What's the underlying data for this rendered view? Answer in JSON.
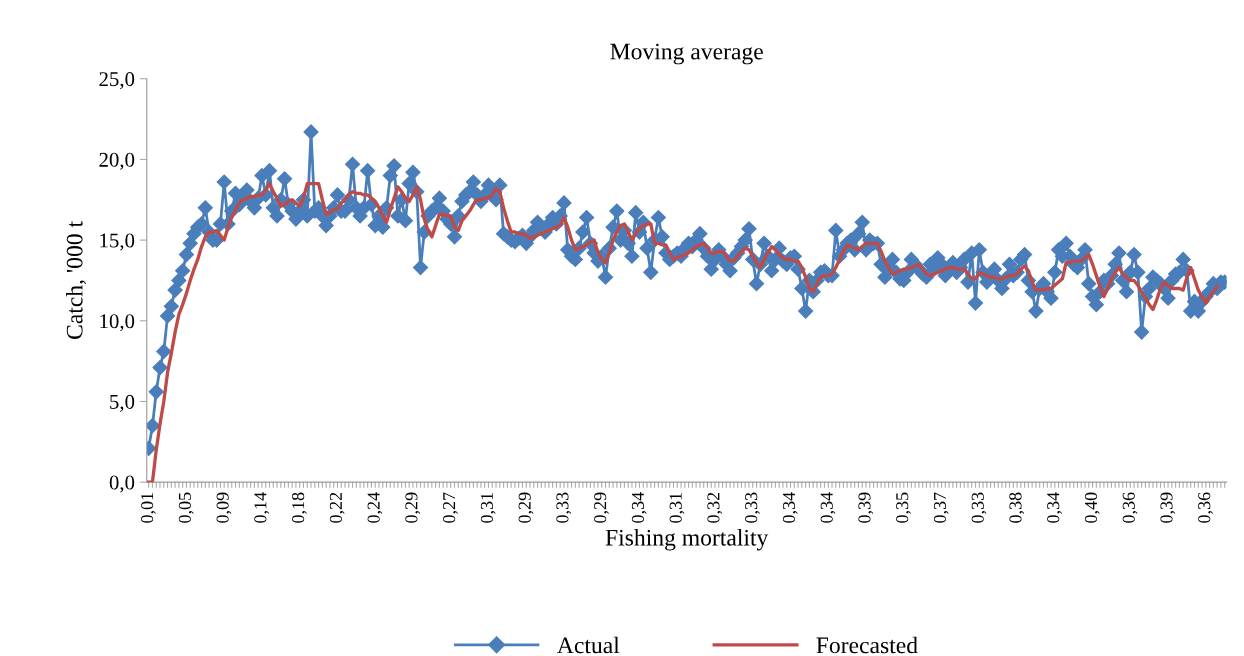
{
  "chart_data": {
    "type": "line",
    "title": "Moving average",
    "xlabel": "Fishing mortality",
    "ylabel": "Catch, '000 t",
    "categories": [
      "0,01",
      null,
      null,
      null,
      null,
      null,
      null,
      null,
      null,
      null,
      "0,05",
      null,
      null,
      null,
      null,
      null,
      null,
      null,
      null,
      null,
      "0,09",
      null,
      null,
      null,
      null,
      null,
      null,
      null,
      null,
      null,
      "0,14",
      null,
      null,
      null,
      null,
      null,
      null,
      null,
      null,
      null,
      "0,18",
      null,
      null,
      null,
      null,
      null,
      null,
      null,
      null,
      null,
      "0,22",
      null,
      null,
      null,
      null,
      null,
      null,
      null,
      null,
      null,
      "0,24",
      null,
      null,
      null,
      null,
      null,
      null,
      null,
      null,
      null,
      "0,29",
      null,
      null,
      null,
      null,
      null,
      null,
      null,
      null,
      null,
      "0,27",
      null,
      null,
      null,
      null,
      null,
      null,
      null,
      null,
      null,
      "0,31",
      null,
      null,
      null,
      null,
      null,
      null,
      null,
      null,
      null,
      "0,29",
      null,
      null,
      null,
      null,
      null,
      null,
      null,
      null,
      null,
      "0,33",
      null,
      null,
      null,
      null,
      null,
      null,
      null,
      null,
      null,
      "0,29",
      null,
      null,
      null,
      null,
      null,
      null,
      null,
      null,
      null,
      "0,34",
      null,
      null,
      null,
      null,
      null,
      null,
      null,
      null,
      null,
      "0,31",
      null,
      null,
      null,
      null,
      null,
      null,
      null,
      null,
      null,
      "0,32",
      null,
      null,
      null,
      null,
      null,
      null,
      null,
      null,
      null,
      "0,33",
      null,
      null,
      null,
      null,
      null,
      null,
      null,
      null,
      null,
      "0,34",
      null,
      null,
      null,
      null,
      null,
      null,
      null,
      null,
      null,
      "0,34",
      null,
      null,
      null,
      null,
      null,
      null,
      null,
      null,
      null,
      "0,39",
      null,
      null,
      null,
      null,
      null,
      null,
      null,
      null,
      null,
      "0,35",
      null,
      null,
      null,
      null,
      null,
      null,
      null,
      null,
      null,
      "0,37",
      null,
      null,
      null,
      null,
      null,
      null,
      null,
      null,
      null,
      "0,33",
      null,
      null,
      null,
      null,
      null,
      null,
      null,
      null,
      null,
      "0,38",
      null,
      null,
      null,
      null,
      null,
      null,
      null,
      null,
      null,
      "0,34",
      null,
      null,
      null,
      null,
      null,
      null,
      null,
      null,
      null,
      "0,40",
      null,
      null,
      null,
      null,
      null,
      null,
      null,
      null,
      null,
      "0,36",
      null,
      null,
      null,
      null,
      null,
      null,
      null,
      null,
      null,
      "0,39",
      null,
      null,
      null,
      null,
      null,
      null,
      null,
      null,
      null,
      "0,36",
      null,
      null,
      null,
      null,
      null
    ],
    "series": [
      {
        "name": "Actual",
        "color": "#4a7ebb",
        "marker": "diamond",
        "values": [
          2.1,
          3.5,
          5.6,
          7.1,
          8.1,
          10.3,
          10.9,
          11.9,
          12.5,
          13.1,
          14.1,
          14.8,
          15.4,
          15.8,
          16.0,
          17.0,
          15.5,
          15.0,
          15.0,
          16.0,
          18.6,
          16.0,
          16.8,
          17.9,
          17.2,
          17.6,
          18.1,
          17.4,
          17.0,
          17.6,
          19.0,
          17.8,
          19.3,
          17.0,
          16.5,
          17.5,
          18.8,
          17.2,
          16.8,
          16.3,
          16.8,
          17.5,
          16.5,
          21.7,
          16.8,
          17.0,
          16.5,
          15.9,
          16.5,
          17.0,
          17.8,
          16.8,
          16.8,
          17.5,
          19.7,
          17.0,
          16.5,
          17.0,
          19.3,
          17.2,
          15.9,
          16.5,
          15.8,
          17.0,
          19.0,
          19.6,
          16.5,
          17.5,
          16.2,
          18.5,
          19.2,
          18.0,
          13.3,
          15.5,
          16.5,
          16.8,
          17.0,
          17.6,
          16.8,
          16.3,
          16.0,
          15.2,
          16.5,
          17.4,
          17.8,
          18.0,
          18.6,
          17.8,
          17.4,
          17.8,
          18.4,
          18.0,
          17.5,
          18.4,
          15.4,
          15.2,
          15.0,
          14.9,
          15.1,
          15.3,
          14.8,
          15.2,
          15.6,
          16.1,
          15.8,
          15.5,
          16.0,
          16.4,
          16.0,
          16.5,
          17.3,
          14.4,
          14.0,
          13.8,
          14.5,
          15.5,
          16.4,
          14.8,
          14.2,
          13.7,
          14.0,
          12.7,
          14.5,
          15.8,
          16.8,
          15.0,
          15.6,
          14.8,
          14.0,
          16.7,
          15.5,
          16.1,
          14.5,
          13.0,
          15.0,
          16.4,
          15.2,
          14.2,
          13.8,
          14.0,
          14.2,
          14.0,
          14.5,
          14.8,
          14.6,
          15.0,
          15.4,
          14.5,
          14.0,
          13.2,
          13.8,
          14.4,
          14.0,
          13.5,
          13.1,
          13.9,
          14.2,
          14.6,
          15.0,
          15.7,
          13.8,
          12.3,
          13.5,
          14.8,
          14.0,
          13.1,
          13.8,
          14.5,
          13.7,
          13.5,
          13.9,
          14.0,
          13.2,
          12.0,
          10.6,
          12.5,
          11.8,
          12.5,
          13.0,
          13.1,
          12.8,
          12.8,
          15.6,
          14.0,
          14.4,
          14.8,
          15.0,
          14.4,
          15.4,
          16.1,
          14.4,
          15.0,
          14.8,
          14.8,
          13.5,
          12.7,
          13.2,
          13.8,
          13.0,
          12.6,
          12.5,
          13.0,
          13.8,
          13.5,
          13.2,
          12.9,
          12.7,
          13.5,
          13.2,
          13.9,
          13.5,
          12.8,
          13.1,
          13.6,
          13.0,
          13.3,
          13.8,
          12.4,
          14.2,
          11.1,
          14.4,
          13.0,
          12.4,
          12.8,
          13.2,
          12.5,
          12.0,
          12.6,
          13.5,
          12.8,
          13.0,
          13.8,
          14.1,
          12.5,
          11.8,
          10.6,
          12.0,
          12.3,
          11.8,
          11.4,
          13.0,
          14.4,
          14.0,
          14.8,
          14.0,
          13.5,
          13.3,
          13.8,
          14.4,
          12.3,
          11.5,
          11.0,
          11.8,
          12.5,
          12.3,
          12.8,
          13.5,
          14.2,
          12.5,
          11.8,
          13.0,
          14.1,
          13.0,
          9.3,
          11.5,
          12.0,
          12.7,
          12.5,
          12.3,
          12.0,
          11.4,
          12.5,
          12.9,
          13.0,
          13.8,
          13.1,
          10.6,
          11.2,
          10.6,
          11.2,
          11.5,
          11.8,
          12.3,
          12.0,
          12.4,
          12.4
        ]
      },
      {
        "name": "Forecasted",
        "color": "#be4b48",
        "marker": "none",
        "values": [
          0.0,
          0.0,
          2.0,
          3.6,
          5.0,
          6.8,
          8.0,
          9.3,
          10.4,
          11.0,
          11.7,
          12.5,
          13.2,
          13.8,
          14.6,
          15.2,
          15.5,
          15.5,
          15.6,
          15.3,
          15.0,
          15.8,
          16.4,
          16.9,
          17.3,
          17.5,
          17.6,
          17.7,
          17.7,
          17.8,
          17.8,
          18.1,
          18.5,
          18.0,
          17.6,
          17.1,
          17.2,
          17.4,
          17.5,
          17.3,
          17.1,
          17.6,
          18.5,
          18.5,
          18.5,
          18.5,
          17.5,
          16.6,
          16.7,
          16.9,
          16.9,
          17.3,
          17.5,
          17.8,
          18.0,
          17.9,
          17.9,
          17.8,
          17.8,
          17.6,
          17.4,
          17.0,
          16.5,
          16.1,
          16.9,
          17.6,
          18.3,
          18.0,
          17.6,
          17.4,
          17.8,
          18.3,
          17.5,
          16.3,
          15.6,
          15.2,
          15.9,
          16.6,
          16.6,
          16.5,
          16.5,
          15.8,
          15.6,
          16.2,
          16.5,
          16.8,
          17.2,
          17.5,
          17.5,
          17.6,
          17.6,
          17.8,
          18.2,
          18.0,
          17.0,
          16.2,
          15.5,
          15.5,
          15.4,
          15.4,
          15.3,
          15.1,
          15.2,
          15.3,
          15.4,
          15.5,
          15.6,
          15.7,
          15.8,
          15.9,
          16.4,
          15.8,
          15.0,
          14.4,
          14.5,
          14.6,
          14.7,
          14.9,
          15.0,
          14.2,
          13.8,
          13.6,
          14.2,
          15.0,
          15.5,
          15.9,
          16.0,
          15.5,
          15.0,
          15.4,
          15.7,
          15.9,
          16.0,
          16.0,
          14.8,
          14.8,
          14.7,
          14.7,
          14.2,
          13.8,
          13.9,
          14.0,
          14.1,
          14.2,
          14.4,
          14.6,
          14.7,
          14.8,
          14.5,
          14.2,
          14.2,
          14.3,
          14.3,
          14.0,
          13.7,
          13.7,
          14.0,
          14.3,
          14.5,
          14.4,
          14.0,
          13.6,
          13.3,
          13.8,
          14.2,
          14.6,
          14.4,
          14.1,
          13.9,
          13.8,
          13.8,
          13.7,
          13.7,
          13.3,
          12.7,
          12.0,
          11.8,
          12.3,
          12.7,
          12.8,
          12.8,
          12.9,
          13.3,
          13.8,
          14.3,
          14.7,
          14.6,
          14.5,
          14.4,
          14.6,
          14.8,
          14.8,
          14.8,
          14.8,
          14.3,
          13.7,
          13.3,
          12.9,
          13.0,
          13.1,
          13.2,
          13.2,
          13.3,
          13.4,
          13.5,
          13.2,
          12.9,
          12.8,
          12.9,
          13.0,
          13.1,
          13.2,
          13.3,
          13.3,
          13.2,
          13.2,
          13.2,
          12.9,
          12.6,
          12.6,
          13.0,
          12.9,
          12.8,
          12.7,
          12.7,
          12.6,
          12.6,
          12.7,
          12.8,
          12.8,
          12.9,
          13.2,
          13.4,
          13.1,
          12.4,
          11.9,
          11.9,
          11.9,
          12.0,
          12.0,
          12.2,
          12.4,
          12.6,
          13.6,
          13.6,
          13.7,
          13.7,
          13.7,
          13.9,
          14.1,
          13.5,
          12.8,
          12.1,
          11.5,
          12.0,
          12.6,
          13.0,
          13.3,
          12.9,
          12.7,
          12.5,
          12.5,
          12.2,
          11.8,
          11.4,
          11.0,
          10.7,
          11.3,
          12.0,
          12.4,
          12.2,
          12.0,
          12.0,
          12.0,
          11.9,
          12.7,
          13.3,
          12.6,
          11.9,
          11.5,
          11.1,
          11.5,
          11.8,
          12.1,
          null,
          null
        ]
      }
    ],
    "ylim": [
      0,
      25
    ],
    "yticks": [
      {
        "value": 0,
        "label": "0,0"
      },
      {
        "value": 5,
        "label": "5,0"
      },
      {
        "value": 10,
        "label": "10,0"
      },
      {
        "value": 15,
        "label": "15,0"
      },
      {
        "value": 20,
        "label": "20,0"
      },
      {
        "value": 25,
        "label": "25,0"
      }
    ],
    "grid": false,
    "legend": "bottom"
  }
}
